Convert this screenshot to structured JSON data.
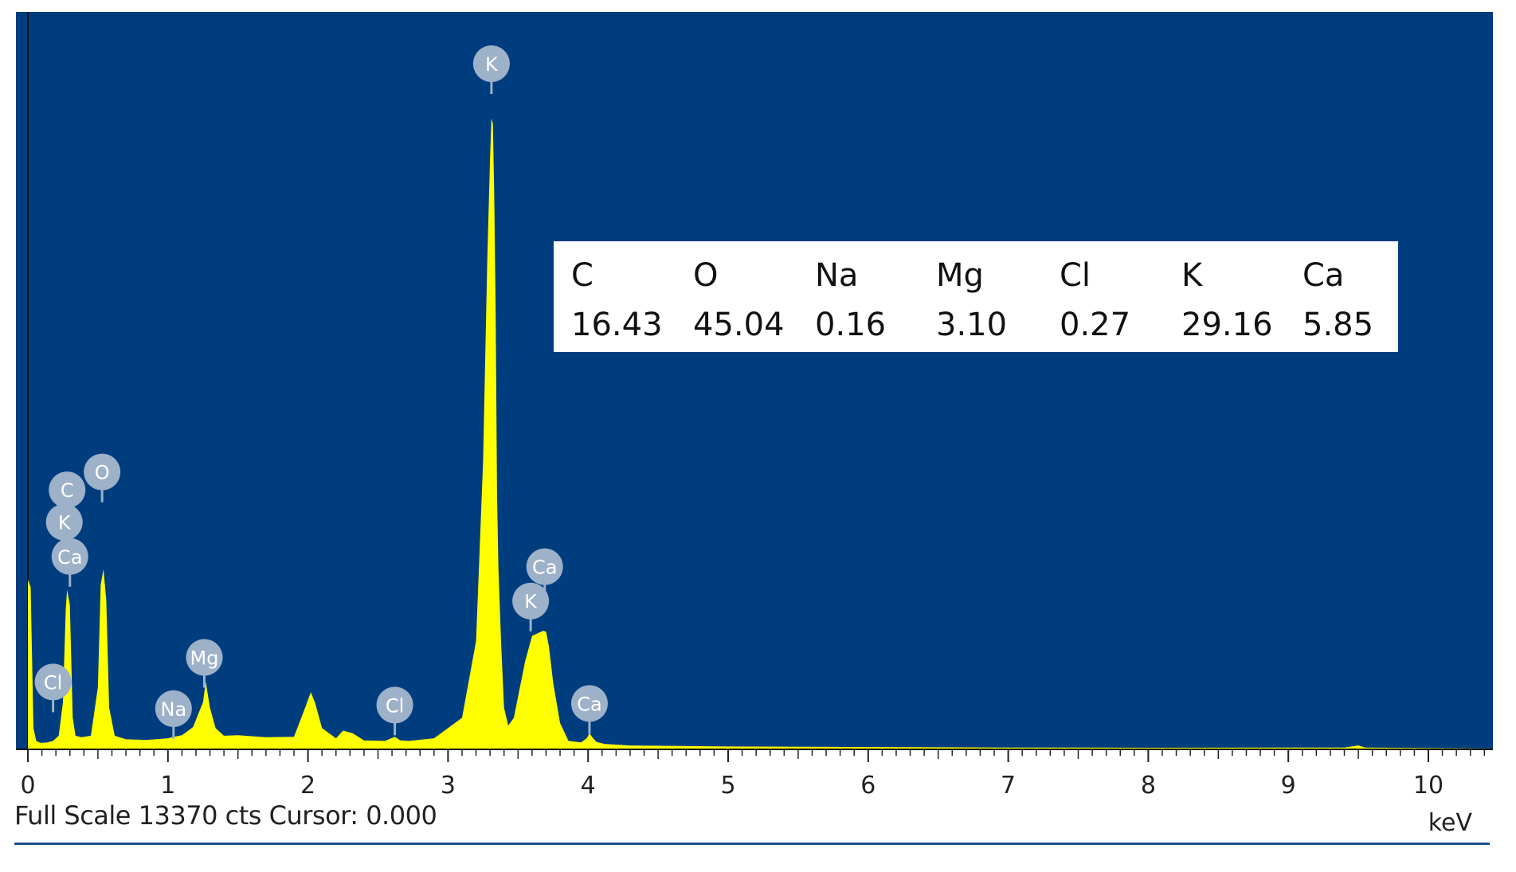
{
  "chart_data": {
    "type": "area",
    "x_unit_label": "keV",
    "xlim": [
      0,
      10.5
    ],
    "full_scale_counts": 13370,
    "x_ticks": [
      "0",
      "1",
      "2",
      "3",
      "4",
      "5",
      "6",
      "7",
      "8",
      "9",
      "10"
    ],
    "spectrum": {
      "x": [
        0.0,
        0.02,
        0.04,
        0.06,
        0.08,
        0.1,
        0.14,
        0.18,
        0.22,
        0.25,
        0.27,
        0.28,
        0.3,
        0.32,
        0.34,
        0.38,
        0.45,
        0.5,
        0.52,
        0.54,
        0.56,
        0.58,
        0.62,
        0.7,
        0.85,
        1.0,
        1.04,
        1.1,
        1.18,
        1.22,
        1.25,
        1.27,
        1.3,
        1.34,
        1.4,
        1.5,
        1.7,
        1.9,
        1.98,
        2.02,
        2.05,
        2.1,
        2.2,
        2.25,
        2.32,
        2.4,
        2.55,
        2.62,
        2.66,
        2.72,
        2.9,
        3.1,
        3.2,
        3.25,
        3.28,
        3.3,
        3.31,
        3.32,
        3.33,
        3.34,
        3.35,
        3.36,
        3.38,
        3.4,
        3.43,
        3.47,
        3.55,
        3.6,
        3.64,
        3.68,
        3.7,
        3.72,
        3.75,
        3.8,
        3.86,
        3.95,
        3.99,
        4.01,
        4.03,
        4.06,
        4.12,
        4.3,
        5.0,
        6.0,
        7.0,
        7.5,
        8.0,
        9.0,
        9.4,
        9.5,
        9.55,
        10.0,
        10.5
      ],
      "counts": [
        3300,
        3150,
        400,
        150,
        120,
        110,
        120,
        150,
        250,
        900,
        2700,
        3100,
        2800,
        600,
        250,
        220,
        250,
        1200,
        3200,
        3500,
        2900,
        800,
        250,
        180,
        170,
        200,
        230,
        260,
        420,
        700,
        900,
        1300,
        800,
        400,
        250,
        260,
        220,
        230,
        800,
        1100,
        900,
        400,
        200,
        350,
        300,
        160,
        150,
        230,
        160,
        150,
        200,
        600,
        2100,
        5600,
        9500,
        11500,
        12300,
        12200,
        10800,
        8500,
        5000,
        3500,
        2000,
        800,
        450,
        600,
        1700,
        2200,
        2250,
        2300,
        2280,
        2000,
        1300,
        500,
        150,
        120,
        200,
        300,
        220,
        130,
        90,
        60,
        40,
        30,
        20,
        20,
        15,
        20,
        20,
        60,
        20,
        10,
        0
      ]
    },
    "peak_labels": [
      {
        "element": "K",
        "energy": 3.31,
        "counts": 13370
      },
      {
        "element": "O",
        "energy": 0.53,
        "counts": 5400
      },
      {
        "element": "C",
        "energy": 0.28,
        "counts": 5050
      },
      {
        "element": "K",
        "energy": 0.26,
        "counts": 4420
      },
      {
        "element": "Ca",
        "energy": 0.3,
        "counts": 3750
      },
      {
        "element": "Mg",
        "energy": 1.26,
        "counts": 1780
      },
      {
        "element": "Cl",
        "energy": 0.18,
        "counts": 1300
      },
      {
        "element": "Na",
        "energy": 1.04,
        "counts": 780
      },
      {
        "element": "Cl",
        "energy": 2.62,
        "counts": 850
      },
      {
        "element": "Ca",
        "energy": 3.69,
        "counts": 3550
      },
      {
        "element": "K",
        "energy": 3.59,
        "counts": 2880
      },
      {
        "element": "Ca",
        "energy": 4.01,
        "counts": 880
      }
    ],
    "composition": {
      "elements": [
        "C",
        "O",
        "Na",
        "Mg",
        "Cl",
        "K",
        "Ca"
      ],
      "values": [
        "16.43",
        "45.04",
        "0.16",
        "3.10",
        "0.27",
        "29.16",
        "5.85"
      ]
    },
    "colors": {
      "background": "#003d7f",
      "spectrum": "#ffff00",
      "marker": "#9db1c8",
      "axis": "#222222"
    }
  },
  "status_text": "Full Scale 13370 cts Cursor: 0.000"
}
